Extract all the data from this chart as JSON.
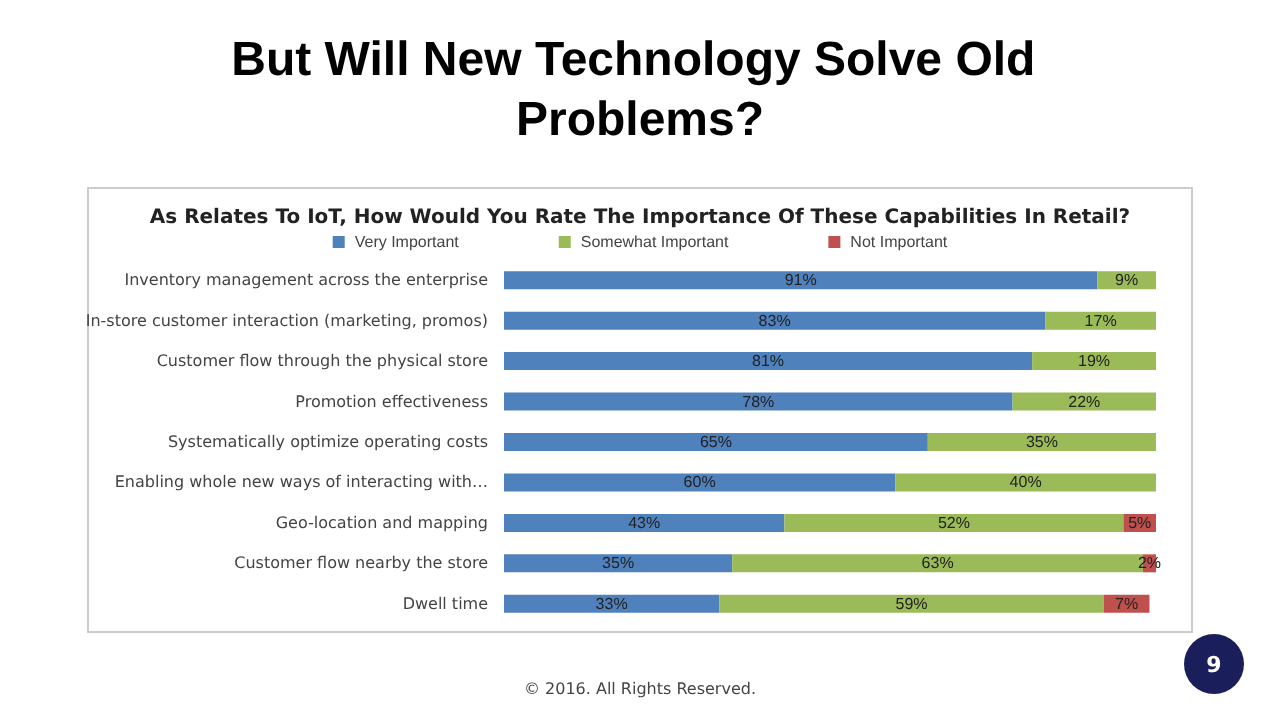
{
  "chart_data": {
    "type": "bar",
    "orientation": "horizontal",
    "stacked": true,
    "title": "But Will New Technology Solve Old Problems?",
    "subtitle": "As Relates To IoT, How Would You Rate The Importance Of These Capabilities In Retail?",
    "categories": [
      "Inventory management across the enterprise",
      "In-store customer interaction (marketing, promos)",
      "Customer flow through the physical store",
      "Promotion effectiveness",
      "Systematically optimize operating costs",
      "Enabling whole new ways of interacting with…",
      "Geo-location and mapping",
      "Customer flow nearby the store",
      "Dwell time"
    ],
    "series": [
      {
        "name": "Very Important",
        "color": "#4f81bd",
        "values": [
          91,
          83,
          81,
          78,
          65,
          60,
          43,
          35,
          33
        ],
        "value_labels": [
          "91%",
          "83%",
          "81%",
          "78%",
          "65%",
          "60%",
          "43%",
          "35%",
          "33%"
        ]
      },
      {
        "name": "Somewhat Important",
        "color": "#9bbb59",
        "values": [
          9,
          17,
          19,
          22,
          35,
          40,
          52,
          63,
          59
        ],
        "value_labels": [
          "9%",
          "17%",
          "19%",
          "22%",
          "35%",
          "40%",
          "52%",
          "63%",
          "59%"
        ]
      },
      {
        "name": "Not Important",
        "color": "#c0504d",
        "values": [
          null,
          null,
          null,
          null,
          null,
          null,
          5,
          2,
          7
        ],
        "value_labels": [
          null,
          null,
          null,
          null,
          null,
          null,
          "5%",
          "2%",
          "7%"
        ]
      }
    ],
    "xlim": [
      0,
      100
    ],
    "tick_labels": "y",
    "grid": false,
    "legend": "top",
    "annotations": [
      "© 2016. All Rights Reserved.",
      "9"
    ]
  }
}
